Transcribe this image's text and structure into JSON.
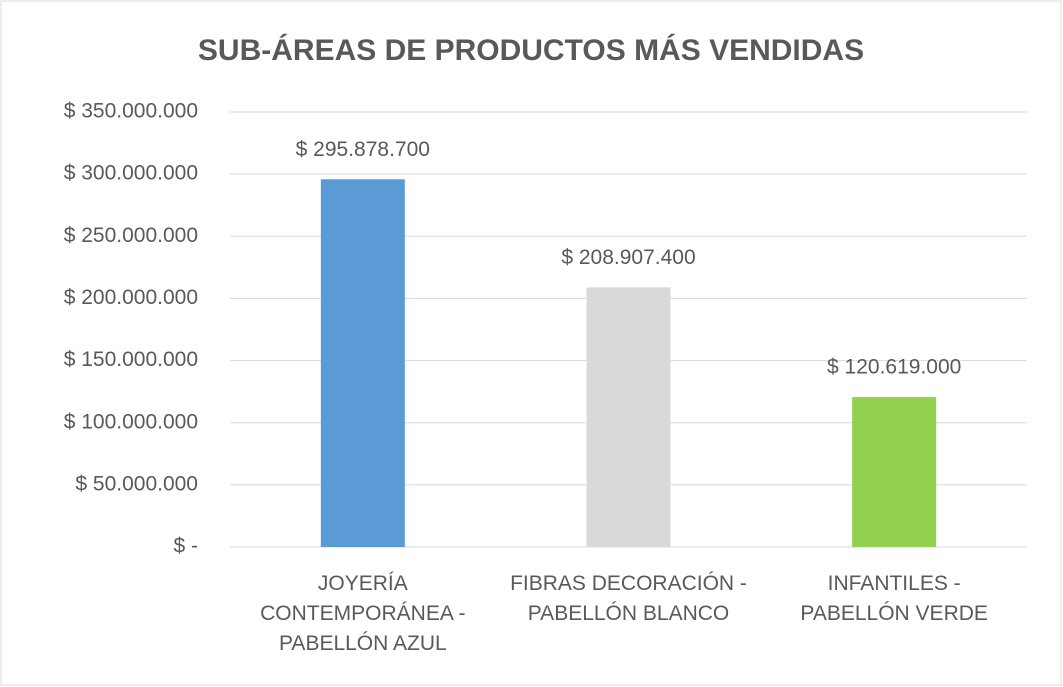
{
  "chart_data": {
    "type": "bar",
    "title": "SUB-ÁREAS DE PRODUCTOS MÁS VENDIDAS",
    "categories": [
      "JOYERÍA\nCONTEMPORÁNEA -\nPABELLÓN AZUL",
      "FIBRAS DECORACIÓN -\nPABELLÓN BLANCO",
      "INFANTILES -\nPABELLÓN VERDE"
    ],
    "values": [
      295878700,
      208907400,
      120619000
    ],
    "value_labels": [
      "$ 295.878.700",
      "$ 208.907.400",
      "$ 120.619.000"
    ],
    "colors": [
      "#5b9bd5",
      "#d9d9d9",
      "#92d050"
    ],
    "ylim": [
      0,
      350000000
    ],
    "yticks": [
      {
        "value": 0,
        "label": "$ -"
      },
      {
        "value": 50000000,
        "label": "$ 50.000.000"
      },
      {
        "value": 100000000,
        "label": "$ 100.000.000"
      },
      {
        "value": 150000000,
        "label": "$ 150.000.000"
      },
      {
        "value": 200000000,
        "label": "$ 200.000.000"
      },
      {
        "value": 250000000,
        "label": "$ 250.000.000"
      },
      {
        "value": 300000000,
        "label": "$ 300.000.000"
      },
      {
        "value": 350000000,
        "label": "$ 350.000.000"
      }
    ],
    "grid": true
  }
}
